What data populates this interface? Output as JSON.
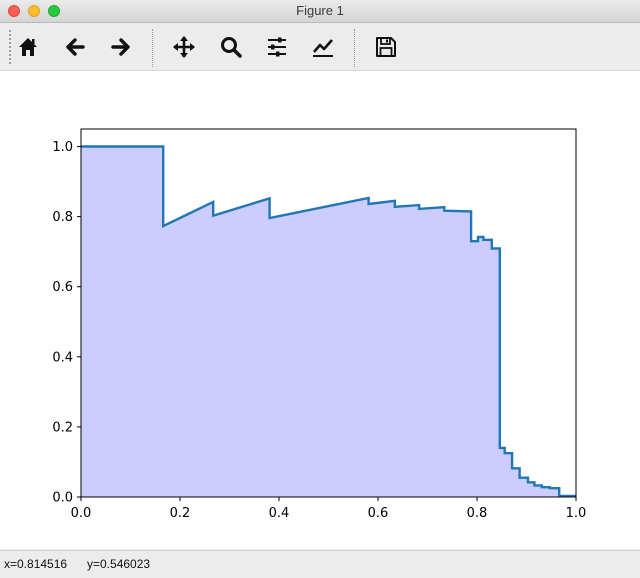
{
  "window": {
    "title": "Figure 1"
  },
  "toolbar": {
    "buttons": [
      {
        "name": "home",
        "icon": "home-icon"
      },
      {
        "name": "back",
        "icon": "arrow-left-icon"
      },
      {
        "name": "forward",
        "icon": "arrow-right-icon"
      },
      {
        "name": "pan",
        "icon": "move-icon"
      },
      {
        "name": "zoom",
        "icon": "search-icon"
      },
      {
        "name": "configure-subplots",
        "icon": "sliders-icon"
      },
      {
        "name": "edit-axis",
        "icon": "line-chart-icon"
      },
      {
        "name": "save",
        "icon": "floppy-disk-icon"
      }
    ]
  },
  "chart_data": {
    "type": "area",
    "title": "",
    "xlabel": "",
    "ylabel": "",
    "xlim": [
      0.0,
      1.0
    ],
    "ylim": [
      0.0,
      1.05
    ],
    "xticks": [
      "0.0",
      "0.2",
      "0.4",
      "0.6",
      "0.8",
      "1.0"
    ],
    "yticks": [
      "0.0",
      "0.2",
      "0.4",
      "0.6",
      "0.8",
      "1.0"
    ],
    "grid": false,
    "line_color": "#1f77b4",
    "fill_color": "#ccccff",
    "series": [
      {
        "x": [
          0.0,
          0.166,
          0.166,
          0.267,
          0.267,
          0.381,
          0.381,
          0.581,
          0.581,
          0.634,
          0.634,
          0.683,
          0.683,
          0.734,
          0.734,
          0.788,
          0.788,
          0.802,
          0.802,
          0.813,
          0.813,
          0.83,
          0.83,
          0.846,
          0.846,
          0.856,
          0.856,
          0.871,
          0.871,
          0.886,
          0.886,
          0.903,
          0.903,
          0.916,
          0.916,
          0.931,
          0.931,
          0.947,
          0.947,
          0.966,
          0.966,
          1.0
        ],
        "y": [
          1.0,
          1.0,
          0.773,
          0.842,
          0.803,
          0.852,
          0.796,
          0.853,
          0.836,
          0.845,
          0.828,
          0.833,
          0.822,
          0.827,
          0.817,
          0.815,
          0.73,
          0.73,
          0.742,
          0.742,
          0.734,
          0.734,
          0.709,
          0.709,
          0.14,
          0.14,
          0.125,
          0.125,
          0.082,
          0.082,
          0.055,
          0.055,
          0.042,
          0.042,
          0.033,
          0.033,
          0.028,
          0.028,
          0.025,
          0.025,
          0.003,
          0.003
        ]
      }
    ]
  },
  "status": {
    "x_label": "x=0.814516",
    "y_label": "y=0.546023"
  }
}
